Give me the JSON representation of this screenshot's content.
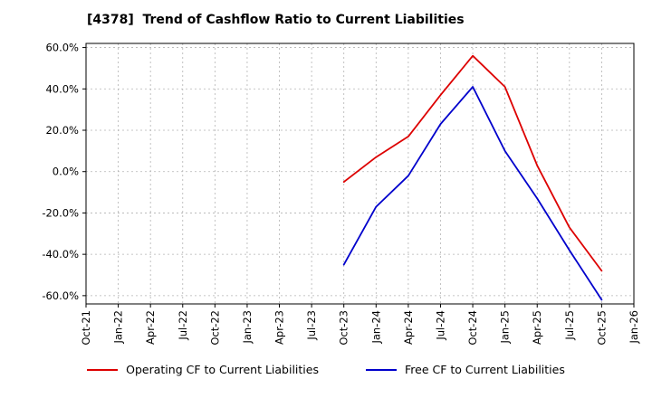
{
  "title": "[4378]  Trend of Cashflow Ratio to Current Liabilities",
  "chart_data": {
    "type": "line",
    "title": "[4378]  Trend of Cashflow Ratio to Current Liabilities",
    "x_labels": [
      "Oct-21",
      "Jan-22",
      "Apr-22",
      "Jul-22",
      "Oct-22",
      "Jan-23",
      "Apr-23",
      "Jul-23",
      "Oct-23",
      "Jan-24",
      "Apr-24",
      "Jul-24",
      "Oct-24",
      "Jan-25",
      "Apr-25",
      "Jul-25",
      "Oct-25",
      "Jan-26"
    ],
    "y_ticks": [
      60,
      40,
      20,
      0,
      -20,
      -40,
      -60
    ],
    "y_tick_labels": [
      "60.0%",
      "40.0%",
      "20.0%",
      "0.0%",
      "-20.0%",
      "-40.0%",
      "-60.0%"
    ],
    "ylim": [
      -64,
      62
    ],
    "grid": true,
    "legend_position": "bottom",
    "series": [
      {
        "name": "Operating CF to Current Liabilities",
        "color": "#dd0000",
        "values": [
          null,
          null,
          null,
          null,
          null,
          null,
          null,
          null,
          -5,
          7,
          17,
          37,
          56,
          41,
          3,
          -27,
          -48,
          null
        ]
      },
      {
        "name": "Free CF to Current Liabilities",
        "color": "#0000cc",
        "values": [
          null,
          null,
          null,
          null,
          null,
          null,
          null,
          null,
          -45,
          -17,
          -2,
          23,
          41,
          10,
          -13,
          -38,
          -62,
          null
        ]
      }
    ]
  }
}
